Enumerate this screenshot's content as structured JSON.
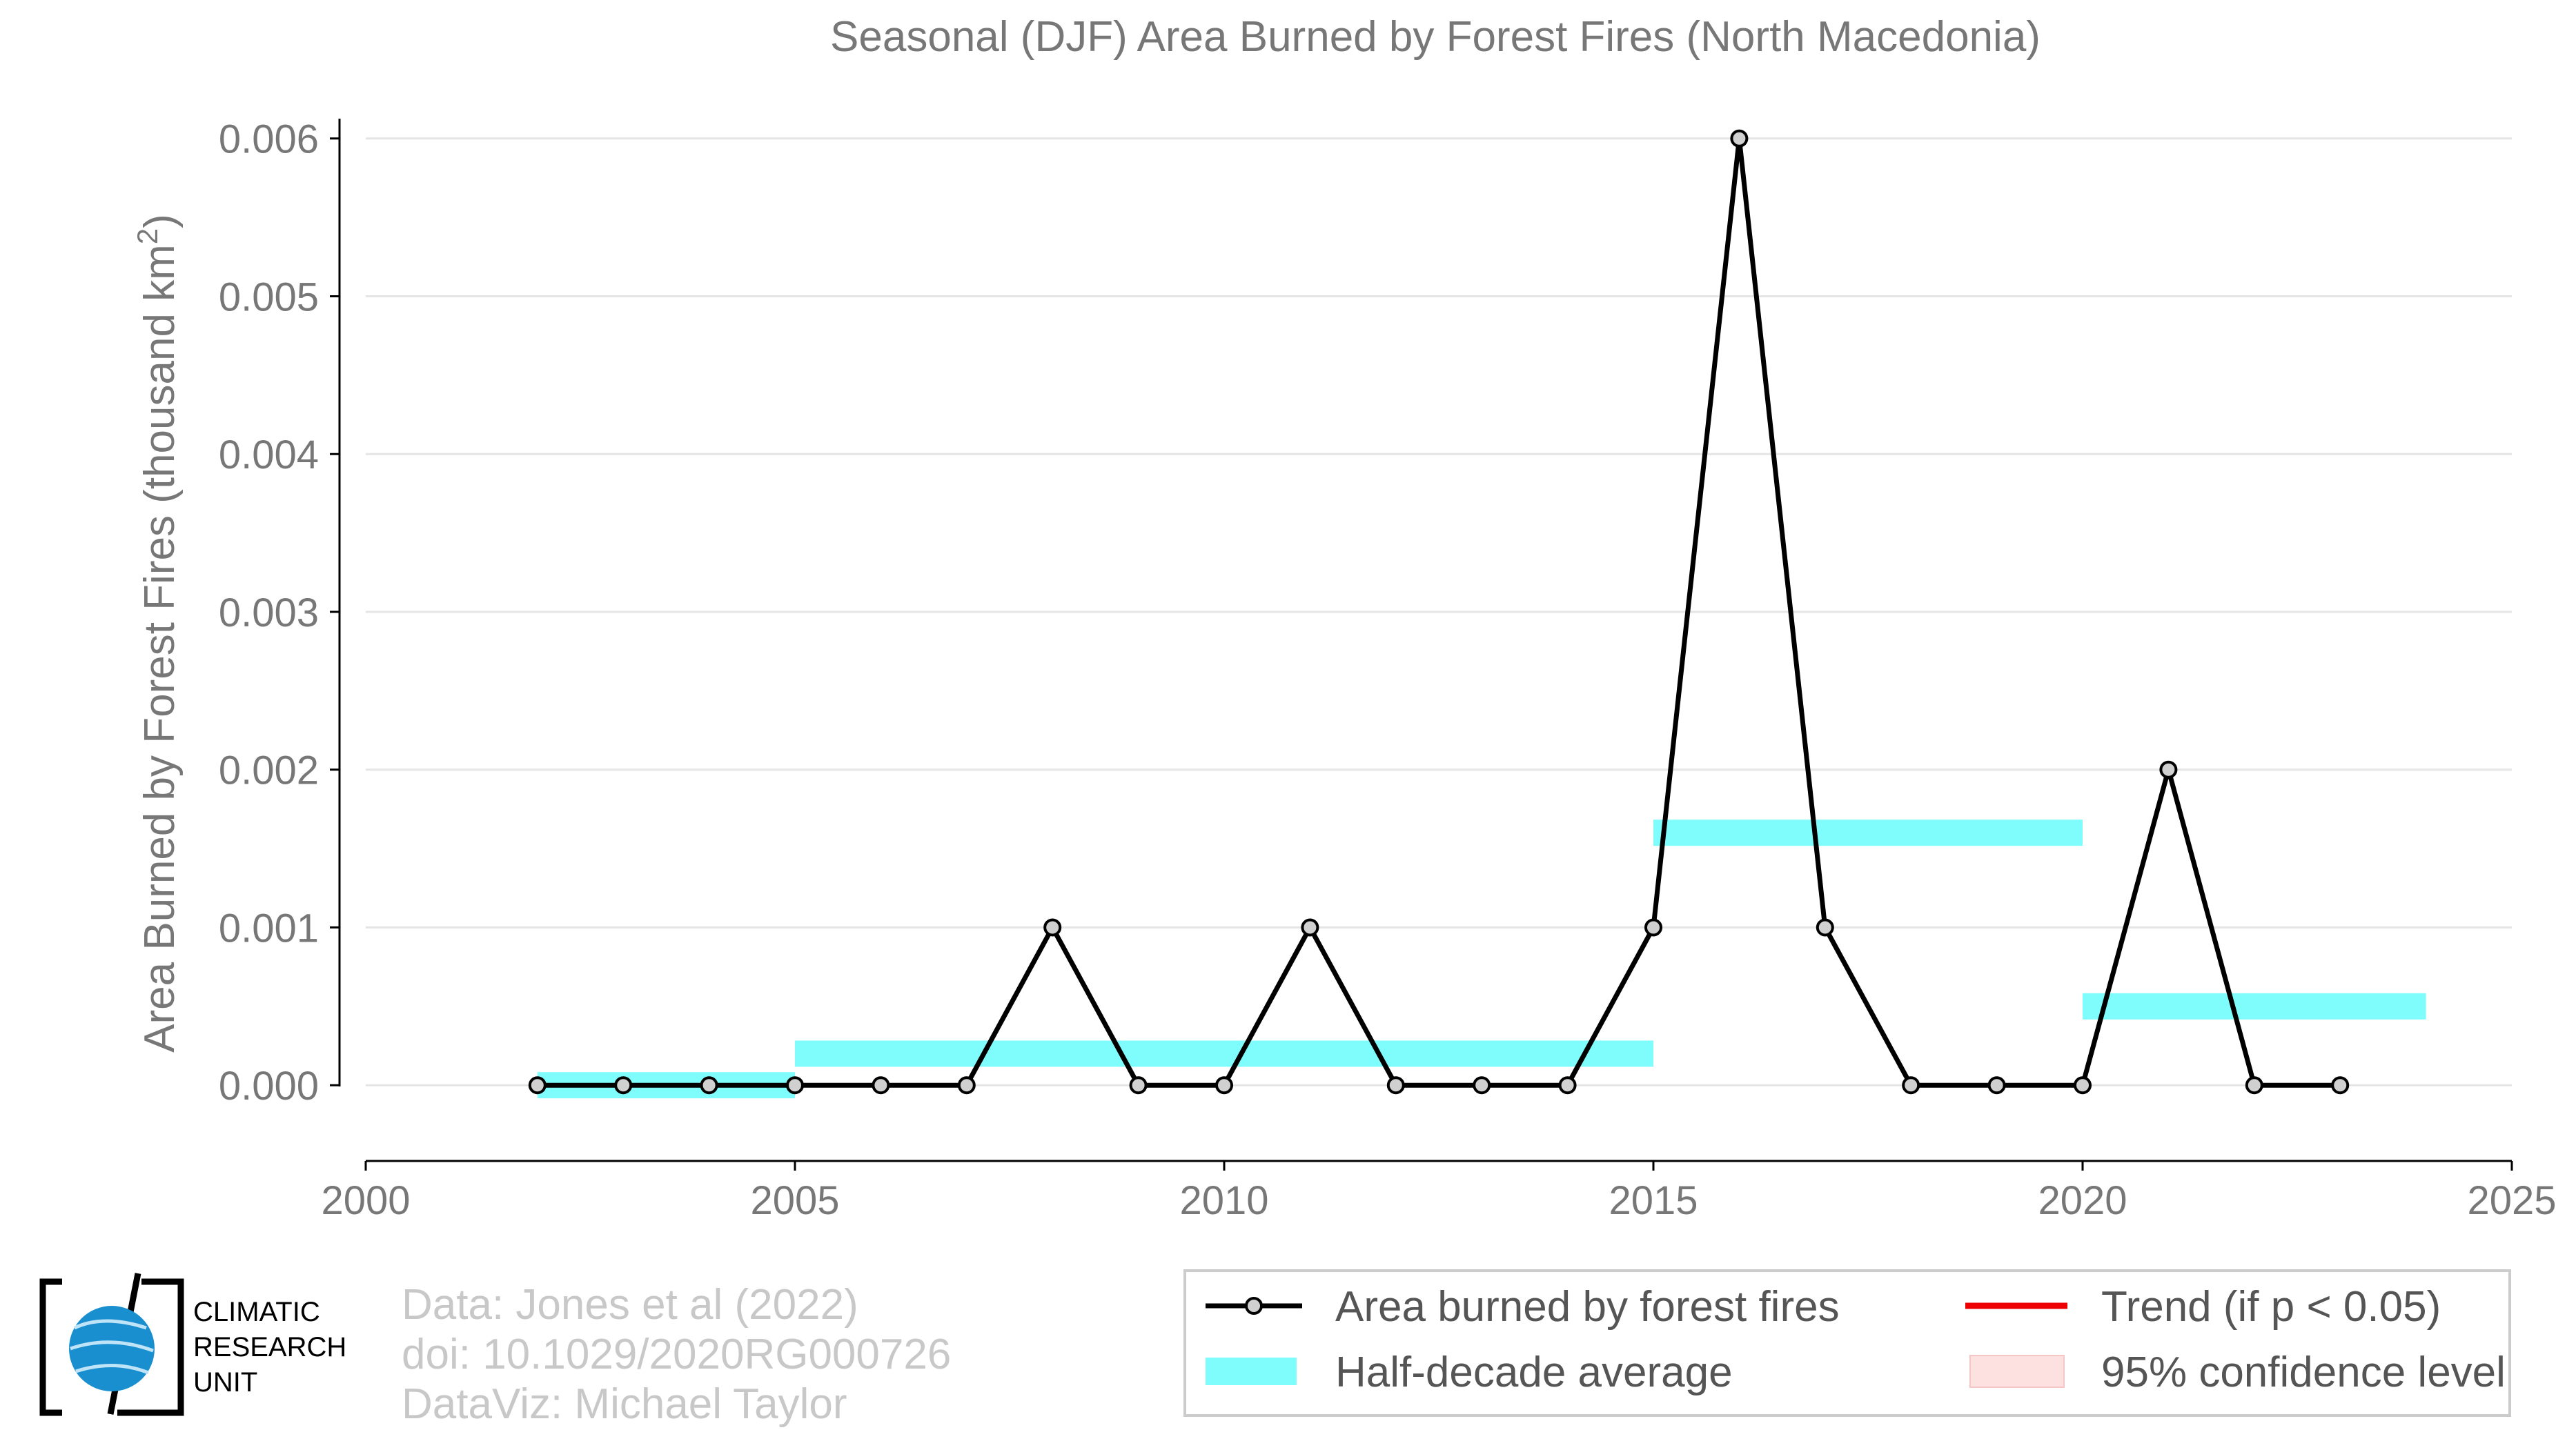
{
  "chart_data": {
    "type": "line",
    "title": "Seasonal (DJF) Area Burned by Forest Fires (North Macedonia)",
    "ylabel_main": "Area Burned by Forest Fires (thousand km",
    "ylabel_sup": "2",
    "ylabel_end": ")",
    "xlim": [
      2000,
      2025
    ],
    "ylim": [
      -0.00048,
      0.0062
    ],
    "x_ticks": [
      2000,
      2005,
      2010,
      2015,
      2020,
      2025
    ],
    "x_tick_labels": [
      "2000",
      "2005",
      "2010",
      "2015",
      "2020",
      "2025"
    ],
    "y_ticks": [
      0,
      0.001,
      0.002,
      0.003,
      0.004,
      0.005,
      0.006
    ],
    "y_tick_labels": [
      "0.000",
      "0.001",
      "0.002",
      "0.003",
      "0.004",
      "0.005",
      "0.006"
    ],
    "grid": true,
    "series": [
      {
        "name": "Area burned by forest fires",
        "x": [
          2002,
          2003,
          2004,
          2005,
          2006,
          2007,
          2008,
          2009,
          2010,
          2011,
          2012,
          2013,
          2014,
          2015,
          2016,
          2017,
          2018,
          2019,
          2020,
          2021,
          2022,
          2023
        ],
        "y": [
          0,
          0,
          0,
          0,
          0,
          0,
          0.001,
          0,
          0,
          0.001,
          0,
          0,
          0,
          0.001,
          0.006,
          0.001,
          0,
          0,
          0,
          0.002,
          0,
          0
        ],
        "color": "#000000"
      }
    ],
    "half_decade_average": {
      "name": "Half-decade average",
      "color": "#7ffdfd",
      "segments": [
        {
          "x0": 2002,
          "x1": 2005,
          "value": 0
        },
        {
          "x0": 2005,
          "x1": 2015,
          "value": 0.0002
        },
        {
          "x0": 2015,
          "x1": 2020,
          "value": 0.0016
        },
        {
          "x0": 2020,
          "x1": 2024,
          "value": 0.0005
        }
      ]
    },
    "legend": {
      "placement": "bottom-right",
      "items": [
        {
          "label": "Area burned by forest fires",
          "kind": "line-marker",
          "color": "#000000"
        },
        {
          "label": "Half-decade average",
          "kind": "band",
          "color": "#7ffdfd"
        },
        {
          "label": "Trend (if p < 0.05)",
          "kind": "line",
          "color": "#ee0000"
        },
        {
          "label": "95% confidence level",
          "kind": "band",
          "color": "#fde0e0"
        }
      ]
    }
  },
  "credits": {
    "line1": "Data: Jones et al (2022)",
    "line2": "doi: 10.1029/2020RG000726",
    "line3": "DataViz: Michael Taylor"
  },
  "logo": {
    "line1": "CLIMATIC",
    "line2": "RESEARCH",
    "line3": "UNIT"
  }
}
